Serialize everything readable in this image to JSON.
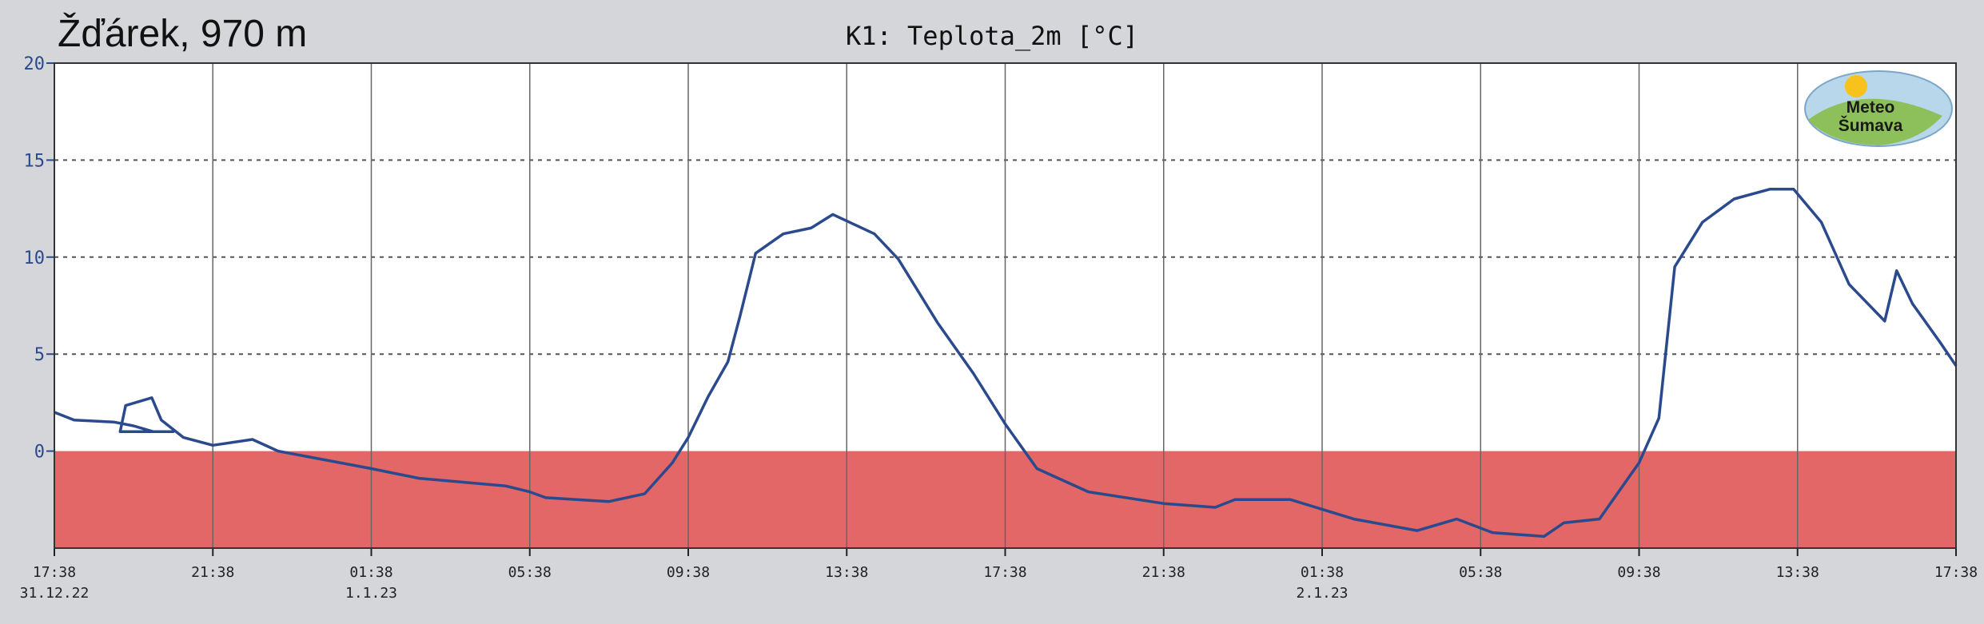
{
  "chart_data": {
    "type": "line",
    "title": "Žďárek, 970 m",
    "subtitle": "K1: Teplota_2m [°C]",
    "logo": [
      "Meteo",
      "Šumava"
    ],
    "xlim": [
      0,
      48
    ],
    "xticks": [
      {
        "value": 0,
        "label": "17:38"
      },
      {
        "value": 4,
        "label": "21:38"
      },
      {
        "value": 8,
        "label": "01:38"
      },
      {
        "value": 12,
        "label": "05:38"
      },
      {
        "value": 16,
        "label": "09:38"
      },
      {
        "value": 20,
        "label": "13:38"
      },
      {
        "value": 24,
        "label": "17:38"
      },
      {
        "value": 28,
        "label": "21:38"
      },
      {
        "value": 32,
        "label": "01:38"
      },
      {
        "value": 36,
        "label": "05:38"
      },
      {
        "value": 40,
        "label": "09:38"
      },
      {
        "value": 44,
        "label": "13:38"
      },
      {
        "value": 48,
        "label": "17:38"
      }
    ],
    "date_labels": [
      {
        "value": 0,
        "label": "31.12.22"
      },
      {
        "value": 8,
        "label": "1.1.23"
      },
      {
        "value": 32,
        "label": "2.1.23"
      }
    ],
    "ylim": [
      -5,
      20
    ],
    "yticks": [
      0,
      5,
      10,
      15,
      20
    ],
    "grid": true,
    "fill_below": 0,
    "fill_color": "#e36766",
    "series": [
      {
        "name": "Teplota_2m",
        "color": "#2b4a8e",
        "x": [
          0,
          0.5,
          1.5,
          2,
          2.5,
          3,
          1.66,
          1.8,
          2.46,
          2.7,
          3.26,
          4,
          5,
          5.65,
          8,
          9.2,
          11.4,
          12,
          12.4,
          14,
          14.9,
          15.6,
          16,
          16.5,
          17,
          17.3,
          17.7,
          18.4,
          19.1,
          19.65,
          20.7,
          21.3,
          22.3,
          23.2,
          24,
          24.8,
          26.1,
          28,
          29.3,
          29.8,
          31.2,
          32,
          32.8,
          34.4,
          35.4,
          36.3,
          37.6,
          38.1,
          39,
          40,
          40.5,
          40.9,
          41.6,
          42.4,
          43.3,
          43.9,
          44.6,
          45.3,
          46.2,
          46.5,
          46.9,
          47.6,
          48
        ],
        "values": [
          2.0,
          1.6,
          1.5,
          1.3,
          1.0,
          1.0,
          1.0,
          2.35,
          2.75,
          1.6,
          0.7,
          0.3,
          0.6,
          0,
          -0.9,
          -1.4,
          -1.8,
          -2.1,
          -2.4,
          -2.6,
          -2.2,
          -0.6,
          0.7,
          2.8,
          4.6,
          6.9,
          10.2,
          11.2,
          11.5,
          12.2,
          11.2,
          9.9,
          6.6,
          4.0,
          1.4,
          -0.9,
          -2.1,
          -2.7,
          -2.9,
          -2.5,
          -2.5,
          -3.0,
          -3.5,
          -4.1,
          -3.5,
          -4.2,
          -4.4,
          -3.7,
          -3.5,
          -0.6,
          1.7,
          9.5,
          11.8,
          13.0,
          13.5,
          13.5,
          11.8,
          8.6,
          6.7,
          9.3,
          7.6,
          5.6,
          4.4
        ]
      }
    ]
  }
}
